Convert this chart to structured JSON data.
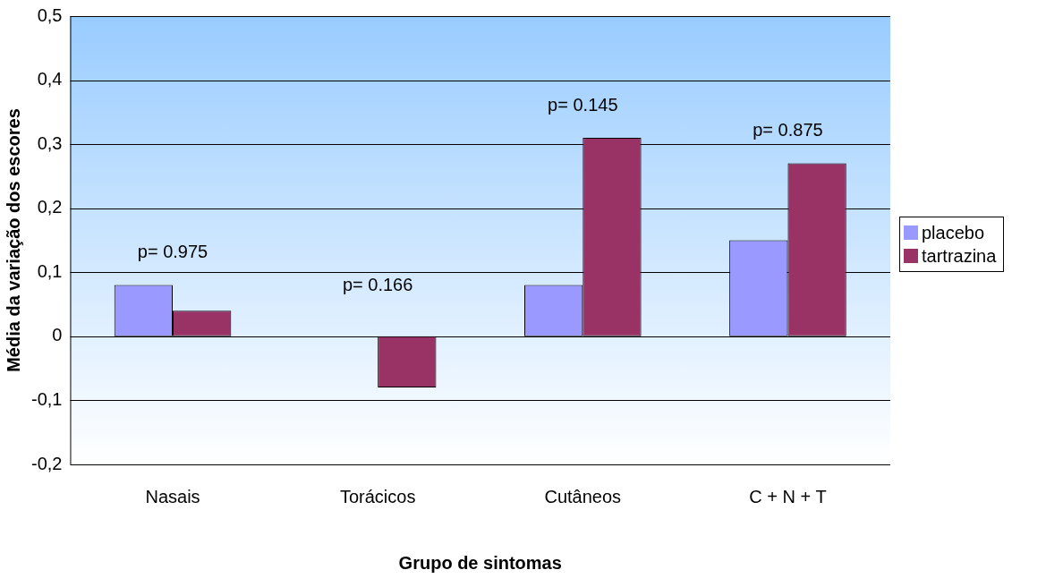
{
  "chart_data": {
    "type": "bar",
    "xlabel": "Grupo de sintomas",
    "ylabel": "Média da variação dos escores",
    "categories": [
      "Nasais",
      "Torácicos",
      "Cutâneos",
      "C + N + T"
    ],
    "series": [
      {
        "name": "placebo",
        "color": "#9999ff",
        "values": [
          0.08,
          0,
          0.08,
          0.15
        ]
      },
      {
        "name": "tartrazina",
        "color": "#993366",
        "values": [
          0.04,
          -0.08,
          0.31,
          0.27
        ]
      }
    ],
    "ylim": [
      -0.2,
      0.5
    ],
    "yticks": [
      {
        "value": -0.2,
        "label": "-0,2"
      },
      {
        "value": -0.1,
        "label": "-0,1"
      },
      0,
      {
        "value": 0.1,
        "label": "0,1"
      },
      {
        "value": 0.2,
        "label": "0,2"
      },
      {
        "value": 0.3,
        "label": "0,3"
      },
      {
        "value": 0.4,
        "label": "0,4"
      },
      {
        "value": 0.5,
        "label": "0,5"
      }
    ],
    "grid": "y",
    "legend": "right",
    "annotations": [
      "p= 0.975",
      "p= 0.166",
      "p= 0.145",
      "p= 0.875"
    ]
  }
}
